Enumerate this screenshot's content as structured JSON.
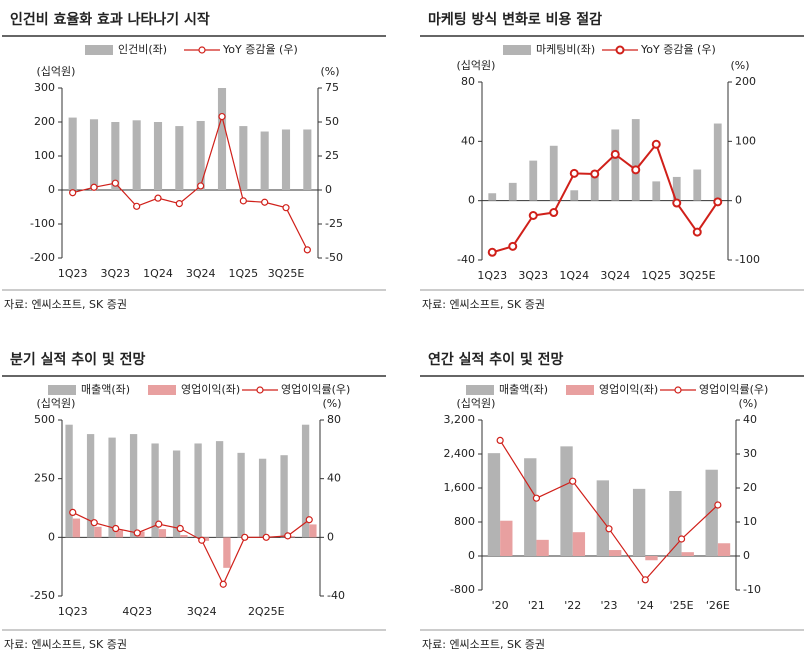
{
  "chart_data": [
    {
      "type": "combo",
      "title": "인건비 효율화 효과 나타나기 시작",
      "source": "자료: 엔씨소프트, SK 증권",
      "y_label": "(십억원)",
      "y2_label": "(%)",
      "categories": [
        "1Q23",
        null,
        "3Q23",
        null,
        "1Q24",
        null,
        "3Q24",
        null,
        "1Q25",
        null,
        "3Q25E",
        null
      ],
      "series": [
        {
          "name": "인건비(좌)",
          "type": "bar",
          "color": "#b3b3b3",
          "values": [
            213,
            208,
            200,
            205,
            200,
            188,
            203,
            300,
            188,
            172,
            178,
            178
          ]
        },
        {
          "name": "YoY 증감율 (우)",
          "type": "line",
          "axis": "y2",
          "color": "#d0201a",
          "values": [
            -2,
            2,
            5,
            -12,
            -6,
            -10,
            3,
            54,
            -8,
            -9,
            -13,
            -44
          ]
        }
      ],
      "ylim": [
        -200,
        300
      ],
      "yticks": [
        -200,
        -100,
        0,
        100,
        200,
        300
      ],
      "y2lim": [
        -50,
        75
      ],
      "y2ticks": [
        -50,
        -25,
        0,
        25,
        50,
        75
      ]
    },
    {
      "type": "combo",
      "title": "마케팅 방식 변화로 비용 절감",
      "source": "자료: 엔씨소프트, SK 증권",
      "y_label": "(십억원)",
      "y2_label": "(%)",
      "categories": [
        "1Q23",
        null,
        "3Q23",
        null,
        "1Q24",
        null,
        "3Q24",
        null,
        "1Q25",
        null,
        "3Q25E",
        null
      ],
      "series": [
        {
          "name": "마케팅비(좌)",
          "type": "bar",
          "color": "#b3b3b3",
          "values": [
            5,
            12,
            27,
            37,
            7,
            18,
            48,
            55,
            13,
            16,
            21,
            52
          ]
        },
        {
          "name": "YoY 증감율 (우)",
          "type": "line",
          "axis": "y2",
          "color": "#d0201a",
          "values": [
            -87,
            -77,
            -25,
            -20,
            46,
            45,
            78,
            52,
            95,
            -4,
            -53,
            -2
          ]
        }
      ],
      "ylim": [
        -40,
        80
      ],
      "yticks": [
        -40,
        0,
        40,
        80
      ],
      "y2lim": [
        -100,
        200
      ],
      "y2ticks": [
        -100,
        0,
        100,
        200
      ]
    },
    {
      "type": "combo",
      "title": "분기 실적 추이 및 전망",
      "source": "자료: 엔씨소프트, SK 증권",
      "y_label": "(십억원)",
      "y2_label": "(%)",
      "categories": [
        "1Q23",
        null,
        null,
        "4Q23",
        null,
        null,
        "3Q24",
        null,
        null,
        "2Q25E",
        null,
        null
      ],
      "series": [
        {
          "name": "매출액(좌)",
          "type": "bar",
          "color": "#b3b3b3",
          "values": [
            480,
            440,
            425,
            440,
            400,
            370,
            400,
            410,
            360,
            335,
            350,
            480
          ]
        },
        {
          "name": "영업이익(좌)",
          "type": "bar",
          "color": "#e8a0a0",
          "values": [
            80,
            45,
            30,
            25,
            35,
            10,
            -15,
            -130,
            0,
            0,
            5,
            55
          ]
        },
        {
          "name": "영업이익률(우)",
          "type": "line",
          "axis": "y2",
          "color": "#d0201a",
          "values": [
            17,
            10,
            6,
            3,
            9,
            6,
            -2,
            -32,
            0,
            0,
            1,
            12
          ]
        }
      ],
      "ylim": [
        -250,
        500
      ],
      "yticks": [
        -250,
        0,
        250,
        500
      ],
      "y2lim": [
        -40,
        80
      ],
      "y2ticks": [
        -40,
        0,
        40,
        80
      ]
    },
    {
      "type": "combo",
      "title": "연간 실적 추이 및 전망",
      "source": "자료: 엔씨소프트, SK 증권",
      "y_label": "(십억원)",
      "y2_label": "(%)",
      "categories": [
        "'20",
        "'21",
        "'22",
        "'23",
        "'24",
        "'25E",
        "'26E"
      ],
      "series": [
        {
          "name": "매출액(좌)",
          "type": "bar",
          "color": "#b3b3b3",
          "values": [
            2420,
            2300,
            2580,
            1780,
            1580,
            1530,
            2030
          ]
        },
        {
          "name": "영업이익(좌)",
          "type": "bar",
          "color": "#e8a0a0",
          "values": [
            830,
            380,
            560,
            140,
            -100,
            90,
            300
          ]
        },
        {
          "name": "영업이익률(우)",
          "type": "line",
          "axis": "y2",
          "color": "#d0201a",
          "values": [
            34,
            17,
            22,
            8,
            -7,
            5,
            15
          ]
        }
      ],
      "ylim": [
        -800,
        3200
      ],
      "yticks": [
        -800,
        0,
        {
          "value": 800,
          "label": "800"
        },
        {
          "value": 1600,
          "label": "1,600"
        },
        {
          "value": 2400,
          "label": "2,400"
        },
        {
          "value": 3200,
          "label": "3,200"
        }
      ],
      "y2lim": [
        -10,
        40
      ],
      "y2ticks": [
        -10,
        0,
        10,
        20,
        30,
        40
      ]
    }
  ]
}
